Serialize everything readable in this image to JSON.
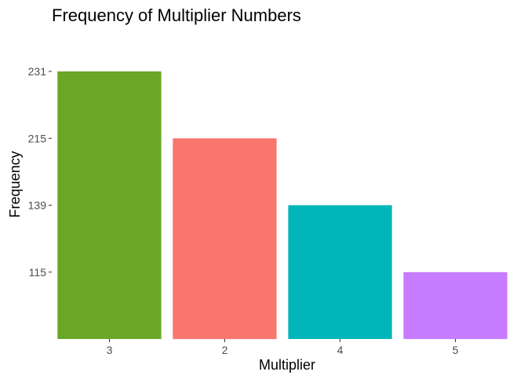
{
  "chart_data": {
    "type": "bar",
    "title": "Frequency of Multiplier Numbers",
    "xlabel": "Multiplier",
    "ylabel": "Frequency",
    "categories": [
      "3",
      "2",
      "4",
      "5"
    ],
    "values": [
      231,
      215,
      139,
      115
    ],
    "colors": [
      "#6BA627",
      "#F8766D",
      "#00B6BA",
      "#C77CFF"
    ],
    "y_ticks": [
      "231",
      "215",
      "139",
      "115"
    ],
    "ylim": [
      0,
      231
    ],
    "grid": false,
    "legend": "none"
  }
}
